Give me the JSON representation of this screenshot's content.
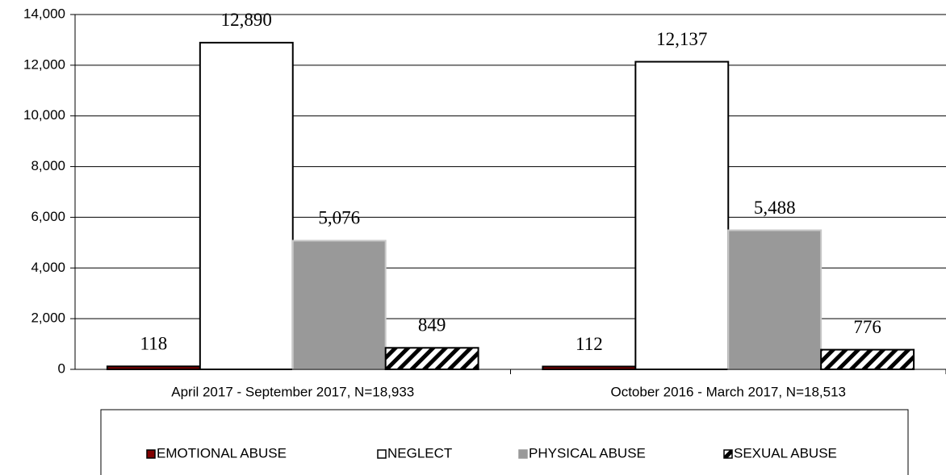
{
  "chart_data": {
    "type": "bar",
    "categories": [
      "April 2017 - September 2017, N=18,933",
      "October 2016 - March 2017, N=18,513"
    ],
    "series": [
      {
        "name": "EMOTIONAL ABUSE",
        "color": "#800000",
        "edgecolor": "#000000",
        "values": [
          118,
          112
        ],
        "value_labels": [
          "118",
          "112"
        ]
      },
      {
        "name": "NEGLECT",
        "color": "#ffffff",
        "edgecolor": "#000000",
        "values": [
          12890,
          12137
        ],
        "value_labels": [
          "12,890",
          "12,137"
        ]
      },
      {
        "name": "PHYSICAL ABUSE",
        "color": "#999999",
        "edgecolor": "#c8c8c8",
        "values": [
          5076,
          5488
        ],
        "value_labels": [
          "5,076",
          "5,488"
        ]
      },
      {
        "name": "SEXUAL ABUSE",
        "color": "#000000",
        "edgecolor": "#000000",
        "hatch": true,
        "values": [
          849,
          776
        ],
        "value_labels": [
          "849",
          "776"
        ]
      }
    ],
    "ylim": [
      0,
      14000
    ],
    "yticks": [
      0,
      {
        "value": 2000,
        "label": "2,000"
      },
      {
        "value": 4000,
        "label": "4,000"
      },
      {
        "value": 6000,
        "label": "6,000"
      },
      {
        "value": 8000,
        "label": "8,000"
      },
      {
        "value": 10000,
        "label": "10,000"
      },
      {
        "value": 12000,
        "label": "12,000"
      },
      {
        "value": 14000,
        "label": "14,000"
      }
    ],
    "grid": true,
    "legend": "bottom"
  }
}
